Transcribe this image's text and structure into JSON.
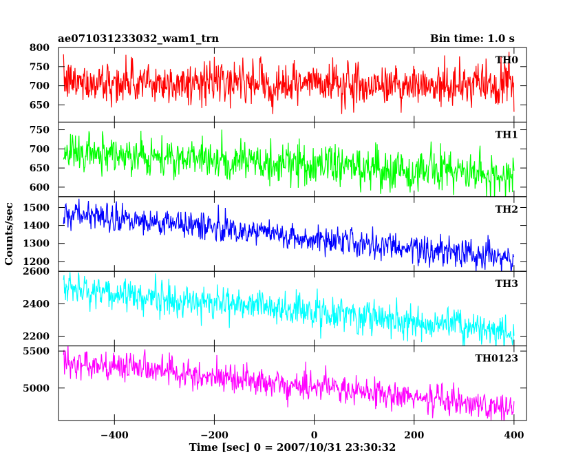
{
  "header": {
    "title": "ae071031233032_wam1_trn",
    "bin_time": "Bin time: 1.0 s"
  },
  "chart_data": {
    "type": "line",
    "xlabel": "Time [sec] 0 = 2007/10/31 23:30:32",
    "ylabel": "Counts/sec",
    "xlim": [
      -512,
      425
    ],
    "x_ticks": [
      -400,
      -200,
      0,
      200,
      400
    ],
    "x_tick_labels": [
      "−400",
      "−200",
      "0",
      "200",
      "400"
    ],
    "x_data_range": [
      -502,
      400
    ],
    "bin_time_s": 1.0,
    "panels": [
      {
        "name": "TH0",
        "color": "#ff0000",
        "ylim": [
          605,
          800
        ],
        "y_ticks": [
          650,
          700,
          750,
          800
        ],
        "y_tick_labels": [
          "650",
          "700",
          "750",
          "800"
        ],
        "mean_start": 710,
        "mean_end": 700,
        "noise": 26,
        "y_min_seen": 610,
        "y_max_seen": 800
      },
      {
        "name": "TH1",
        "color": "#00ff00",
        "ylim": [
          575,
          770
        ],
        "y_ticks": [
          600,
          650,
          700,
          750
        ],
        "y_tick_labels": [
          "600",
          "650",
          "700",
          "750"
        ],
        "mean_start": 690,
        "mean_end": 635,
        "noise": 26,
        "y_min_seen": 577,
        "y_max_seen": 768
      },
      {
        "name": "TH2",
        "color": "#0000ff",
        "ylim": [
          1145,
          1560
        ],
        "y_ticks": [
          1200,
          1300,
          1400,
          1500
        ],
        "y_tick_labels": [
          "1200",
          "1300",
          "1400",
          "1500"
        ],
        "mean_start": 1470,
        "mean_end": 1210,
        "noise": 38,
        "y_min_seen": 1150,
        "y_max_seen": 1560
      },
      {
        "name": "TH3",
        "color": "#00ffff",
        "ylim": [
          2140,
          2600
        ],
        "y_ticks": [
          2200,
          2400,
          2600
        ],
        "y_tick_labels": [
          "2200",
          "2400",
          "2600"
        ],
        "mean_start": 2490,
        "mean_end": 2230,
        "noise": 50,
        "y_min_seen": 2150,
        "y_max_seen": 2600
      },
      {
        "name": "TH0123",
        "color": "#ff00ff",
        "ylim": [
          4560,
          5570
        ],
        "y_ticks": [
          5000,
          5500
        ],
        "y_tick_labels": [
          "5000",
          "5500"
        ],
        "mean_start": 5360,
        "mean_end": 4740,
        "noise": 95,
        "y_min_seen": 4580,
        "y_max_seen": 5570
      }
    ]
  }
}
